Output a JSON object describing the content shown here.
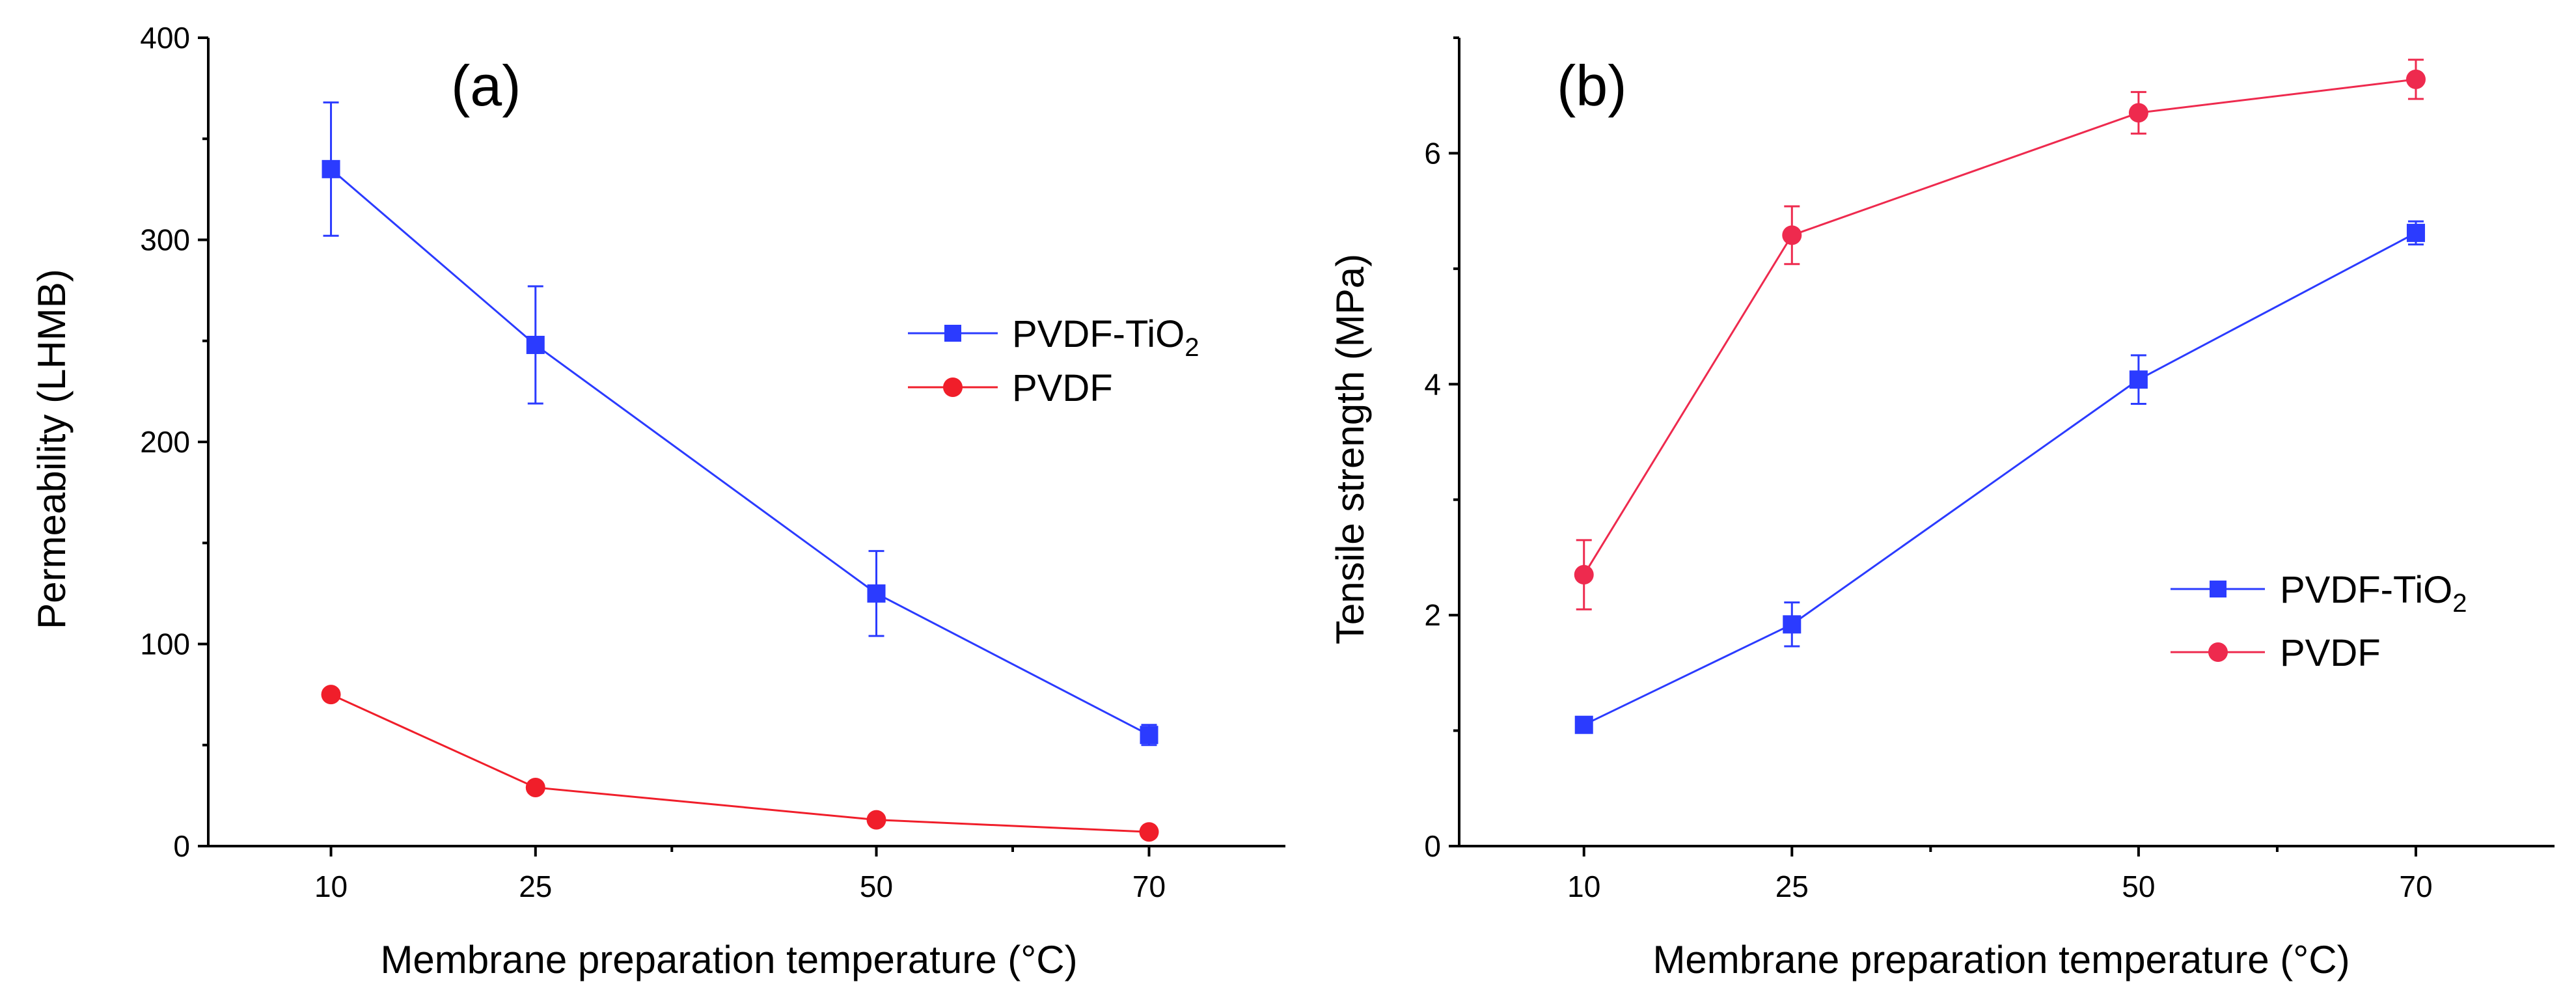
{
  "chart_data": [
    {
      "type": "line",
      "panel_label": "(a)",
      "xlabel": "Membrane preparation temperature (°C)",
      "ylabel": "Permeability (LHMB)",
      "x": [
        10,
        25,
        50,
        70
      ],
      "xlim": [
        1,
        80
      ],
      "ylim": [
        0,
        400
      ],
      "xticks": [
        10,
        25,
        50,
        70
      ],
      "xticks_minor": [
        35,
        60
      ],
      "yticks": [
        0,
        100,
        200,
        300,
        400
      ],
      "yticks_minor": [
        50,
        150,
        250,
        350
      ],
      "legend_position": "center-right",
      "series": [
        {
          "name": "PVDF-TiO",
          "name_subscript": "2",
          "color": "#2b3bff",
          "marker": "square",
          "values": [
            335,
            248,
            125,
            55
          ],
          "errors": [
            33,
            29,
            21,
            5
          ]
        },
        {
          "name": "PVDF",
          "name_subscript": "",
          "color": "#f01e2a",
          "marker": "circle",
          "values": [
            75,
            29,
            13,
            7
          ],
          "errors": [
            0,
            0,
            0,
            0
          ]
        }
      ]
    },
    {
      "type": "line",
      "panel_label": "(b)",
      "xlabel": "Membrane preparation temperature (°C)",
      "ylabel": "Tensile strength (MPa)",
      "x": [
        10,
        25,
        50,
        70
      ],
      "xlim": [
        1,
        80
      ],
      "ylim": [
        0,
        7
      ],
      "xticks": [
        10,
        25,
        50,
        70
      ],
      "xticks_minor": [
        35,
        60
      ],
      "yticks": [
        0,
        2,
        4,
        6
      ],
      "yticks_minor": [
        1,
        3,
        5,
        7
      ],
      "legend_position": "bottom-right",
      "series": [
        {
          "name": "PVDF-TiO",
          "name_subscript": "2",
          "color": "#2b3bff",
          "marker": "square",
          "values": [
            1.05,
            1.92,
            4.04,
            5.31
          ],
          "errors": [
            0.06,
            0.19,
            0.21,
            0.1
          ]
        },
        {
          "name": "PVDF",
          "name_subscript": "",
          "color": "#ee2a4e",
          "marker": "circle",
          "values": [
            2.35,
            5.29,
            6.35,
            6.64
          ],
          "errors": [
            0.3,
            0.25,
            0.18,
            0.17
          ]
        }
      ]
    }
  ]
}
